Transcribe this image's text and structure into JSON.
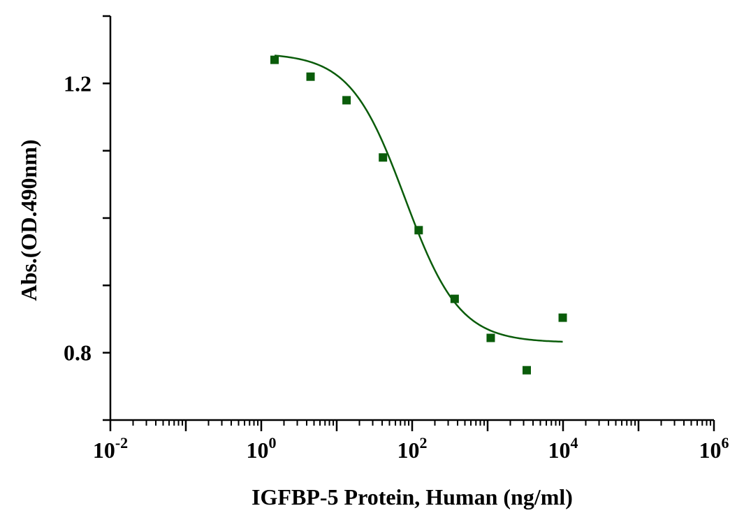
{
  "chart_data": {
    "type": "scatter",
    "title": "",
    "xlabel": "IGFBP-5 Protein, Human (ng/ml)",
    "ylabel": "Abs.(OD.490nm)",
    "x_scale": "log10",
    "xlim": [
      0.01,
      1000000
    ],
    "ylim": [
      0.7,
      1.3
    ],
    "x_major_ticks": [
      {
        "value": 0.01,
        "base": "10",
        "exp": "-2"
      },
      {
        "value": 1,
        "base": "10",
        "exp": "0"
      },
      {
        "value": 100,
        "base": "10",
        "exp": "2"
      },
      {
        "value": 10000,
        "base": "10",
        "exp": "4"
      },
      {
        "value": 1000000,
        "base": "10",
        "exp": "6"
      }
    ],
    "y_ticks": [
      0.7,
      0.8,
      0.9,
      1.0,
      1.1,
      1.2,
      1.3
    ],
    "y_tick_labels": [
      {
        "value": 0.8,
        "label": "0.8"
      },
      {
        "value": 1.2,
        "label": "1.2"
      }
    ],
    "grid": false,
    "legend": "none",
    "series": [
      {
        "color": "#0a5c0a",
        "marker": "square",
        "points": [
          {
            "x": 1.5,
            "y": 1.235
          },
          {
            "x": 4.5,
            "y": 1.21
          },
          {
            "x": 13.5,
            "y": 1.175
          },
          {
            "x": 41,
            "y": 1.09
          },
          {
            "x": 122,
            "y": 0.982
          },
          {
            "x": 366,
            "y": 0.88
          },
          {
            "x": 1100,
            "y": 0.822
          },
          {
            "x": 3300,
            "y": 0.774
          },
          {
            "x": 9900,
            "y": 0.852
          }
        ]
      }
    ],
    "fit_curve": {
      "model": "4PL",
      "color": "#0a5c0a",
      "x_range": [
        1.5,
        9900
      ],
      "top": 1.245,
      "bottom": 0.815,
      "ec50": 80,
      "hill": 1.2
    }
  }
}
